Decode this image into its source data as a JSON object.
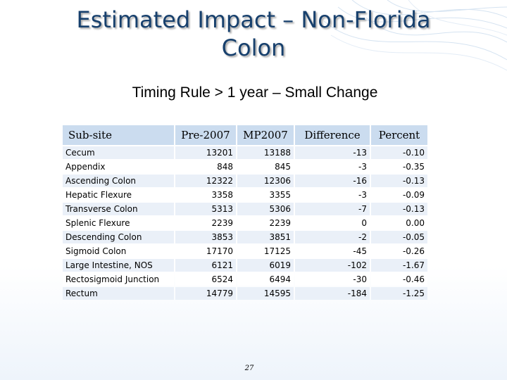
{
  "slide": {
    "title_line1": "Estimated Impact – Non-Florida",
    "title_line2": "Colon",
    "subtitle": "Timing Rule > 1 year – Small Change",
    "page_number": "27"
  },
  "table": {
    "headers": [
      "Sub-site",
      "Pre-2007",
      "MP2007",
      "Difference",
      "Percent"
    ],
    "rows": [
      [
        "Cecum",
        "13201",
        "13188",
        "-13",
        "-0.10"
      ],
      [
        "Appendix",
        "848",
        "845",
        "-3",
        "-0.35"
      ],
      [
        "Ascending Colon",
        "12322",
        "12306",
        "-16",
        "-0.13"
      ],
      [
        "Hepatic Flexure",
        "3358",
        "3355",
        "-3",
        "-0.09"
      ],
      [
        "Transverse Colon",
        "5313",
        "5306",
        "-7",
        "-0.13"
      ],
      [
        "Splenic Flexure",
        "2239",
        "2239",
        "0",
        "0.00"
      ],
      [
        "Descending Colon",
        "3853",
        "3851",
        "-2",
        "-0.05"
      ],
      [
        "Sigmoid Colon",
        "17170",
        "17125",
        "-45",
        "-0.26"
      ],
      [
        "Large Intestine, NOS",
        "6121",
        "6019",
        "-102",
        "-1.67"
      ],
      [
        "Rectosigmoid Junction",
        "6524",
        "6494",
        "-30",
        "-0.46"
      ],
      [
        "Rectum",
        "14779",
        "14595",
        "-184",
        "-1.25"
      ]
    ]
  },
  "colors": {
    "title": "#17406d",
    "header_fill": "#cbdcef",
    "row_band": "#eaf0f8"
  }
}
